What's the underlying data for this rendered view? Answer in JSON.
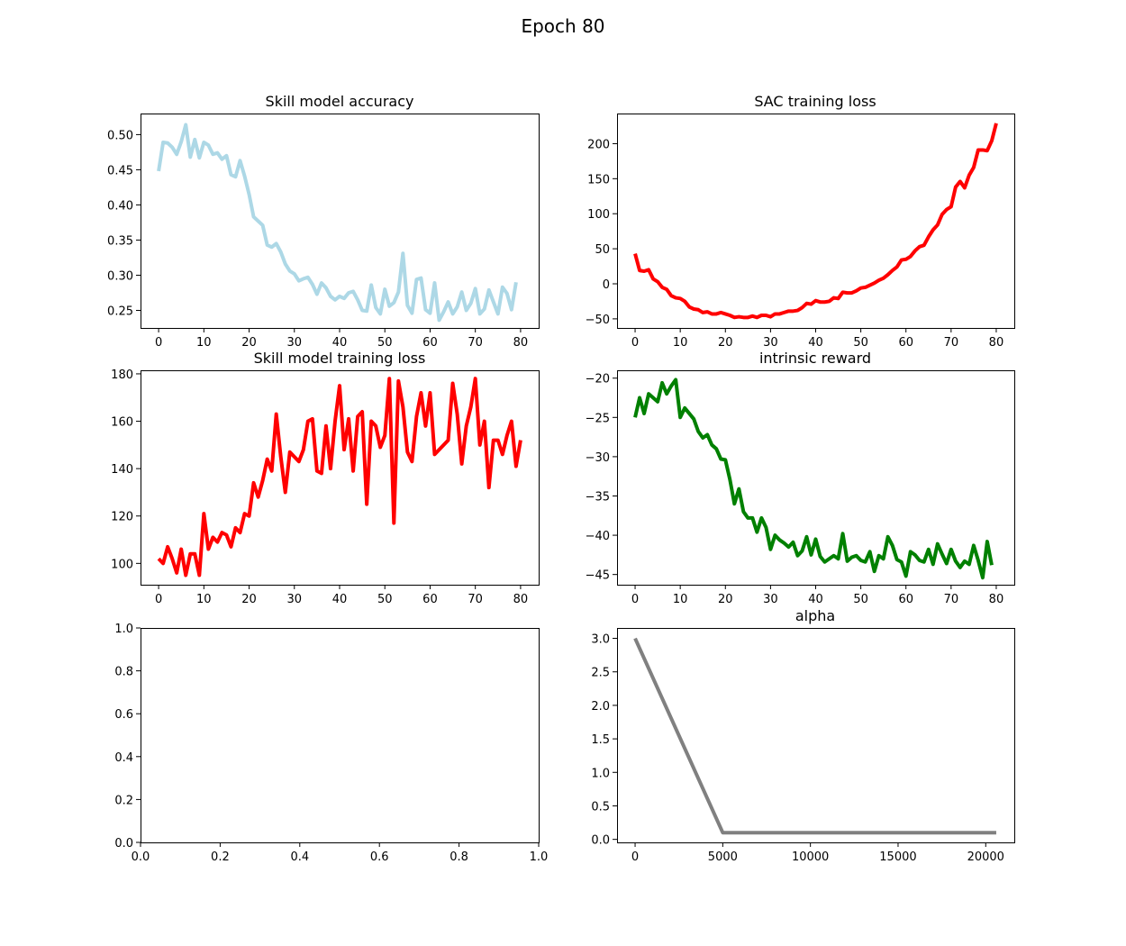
{
  "figure": {
    "suptitle": "Epoch 80"
  },
  "chart_data": [
    {
      "type": "line",
      "title": "Skill model accuracy",
      "xlabel": "",
      "ylabel": "",
      "xlim": [
        -4,
        84
      ],
      "ylim": [
        0.225,
        0.53
      ],
      "xticks": [
        0,
        10,
        20,
        30,
        40,
        50,
        60,
        70,
        80
      ],
      "yticks": [
        0.25,
        0.3,
        0.35,
        0.4,
        0.45,
        0.5
      ],
      "ytick_labels": [
        "0.25",
        "0.30",
        "0.35",
        "0.40",
        "0.45",
        "0.50"
      ],
      "series": [
        {
          "color": "#add8e6",
          "values": [
            0.448,
            0.489,
            0.488,
            0.482,
            0.472,
            0.49,
            0.514,
            0.468,
            0.493,
            0.467,
            0.489,
            0.485,
            0.472,
            0.474,
            0.465,
            0.47,
            0.443,
            0.44,
            0.463,
            0.441,
            0.415,
            0.383,
            0.377,
            0.371,
            0.343,
            0.34,
            0.345,
            0.333,
            0.316,
            0.306,
            0.302,
            0.292,
            0.295,
            0.297,
            0.287,
            0.273,
            0.289,
            0.282,
            0.27,
            0.265,
            0.27,
            0.267,
            0.275,
            0.277,
            0.265,
            0.25,
            0.249,
            0.286,
            0.254,
            0.245,
            0.28,
            0.256,
            0.261,
            0.276,
            0.331,
            0.257,
            0.246,
            0.294,
            0.296,
            0.251,
            0.246,
            0.289,
            0.236,
            0.248,
            0.262,
            0.245,
            0.255,
            0.276,
            0.25,
            0.26,
            0.281,
            0.245,
            0.252,
            0.279,
            0.262,
            0.245,
            0.283,
            0.274,
            0.251,
            0.29
          ]
        }
      ]
    },
    {
      "type": "line",
      "title": "SAC training loss",
      "xlabel": "",
      "ylabel": "",
      "xlim": [
        -4,
        84
      ],
      "ylim": [
        -63,
        243
      ],
      "xticks": [
        0,
        10,
        20,
        30,
        40,
        50,
        60,
        70,
        80
      ],
      "yticks": [
        -50,
        0,
        50,
        100,
        150,
        200
      ],
      "ytick_labels": [
        "−50",
        "0",
        "50",
        "100",
        "150",
        "200"
      ],
      "series": [
        {
          "color": "#ff0000",
          "values": [
            43,
            19,
            18,
            20,
            7,
            3,
            -5,
            -8,
            -17,
            -20,
            -21,
            -25,
            -33,
            -36,
            -37,
            -41,
            -40,
            -43,
            -43,
            -41,
            -43,
            -45,
            -48,
            -47,
            -48,
            -48,
            -46,
            -48,
            -45,
            -45,
            -47,
            -43,
            -43,
            -41,
            -39,
            -39,
            -38,
            -34,
            -28,
            -29,
            -24,
            -26,
            -26,
            -25,
            -20,
            -21,
            -12,
            -13,
            -13,
            -10,
            -6,
            -5,
            -2,
            1,
            5,
            8,
            13,
            19,
            24,
            34,
            35,
            39,
            47,
            53,
            55,
            67,
            77,
            84,
            99,
            106,
            110,
            138,
            146,
            137,
            155,
            166,
            191,
            191,
            190,
            204,
            229
          ]
        }
      ]
    },
    {
      "type": "line",
      "title": "Skill model training loss",
      "xlabel": "",
      "ylabel": "",
      "xlim": [
        -4,
        84
      ],
      "ylim": [
        91,
        181.5
      ],
      "xticks": [
        0,
        10,
        20,
        30,
        40,
        50,
        60,
        70,
        80
      ],
      "yticks": [
        100,
        120,
        140,
        160,
        180
      ],
      "ytick_labels": [
        "100",
        "120",
        "140",
        "160",
        "180"
      ],
      "series": [
        {
          "color": "#ff0000",
          "values": [
            102,
            100,
            107,
            102,
            96,
            106,
            95,
            104,
            104,
            95,
            121,
            106,
            111,
            109,
            113,
            112,
            107,
            115,
            113,
            121,
            120,
            134,
            128,
            135,
            144,
            139,
            163,
            145,
            130,
            147,
            145,
            143,
            148,
            160,
            161,
            139,
            138,
            158,
            140,
            160,
            175,
            148,
            161,
            139,
            162,
            164,
            125,
            160,
            158,
            149,
            154,
            178,
            117,
            177,
            166,
            147,
            143,
            162,
            172,
            158,
            172,
            146,
            148,
            150,
            152,
            176,
            163,
            142,
            158,
            166,
            178,
            150,
            160,
            132,
            152,
            152,
            146,
            154,
            160,
            141,
            152
          ]
        }
      ]
    },
    {
      "type": "line",
      "title": "intrinsic reward",
      "xlabel": "",
      "ylabel": "",
      "xlim": [
        -4,
        84
      ],
      "ylim": [
        -46.3,
        -19.0
      ],
      "xticks": [
        0,
        10,
        20,
        30,
        40,
        50,
        60,
        70,
        80
      ],
      "yticks": [
        -45,
        -40,
        -35,
        -30,
        -25,
        -20
      ],
      "ytick_labels": [
        "−45",
        "−40",
        "−35",
        "−30",
        "−25",
        "−20"
      ],
      "series": [
        {
          "color": "#008000",
          "values": [
            -25.0,
            -22.5,
            -24.5,
            -22.0,
            -22.5,
            -23.0,
            -20.6,
            -22.0,
            -21.0,
            -20.2,
            -25.0,
            -23.8,
            -24.5,
            -25.2,
            -26.8,
            -27.6,
            -27.2,
            -28.5,
            -29.0,
            -30.3,
            -30.4,
            -32.9,
            -36.0,
            -34.1,
            -37.0,
            -37.8,
            -37.8,
            -39.6,
            -37.8,
            -39.0,
            -41.8,
            -40.0,
            -40.6,
            -41.0,
            -41.5,
            -40.9,
            -42.6,
            -42.0,
            -40.2,
            -42.5,
            -40.5,
            -42.7,
            -43.4,
            -43.0,
            -42.6,
            -43.0,
            -39.8,
            -43.3,
            -42.8,
            -42.6,
            -43.2,
            -43.4,
            -42.1,
            -44.6,
            -42.6,
            -43.0,
            -40.2,
            -41.3,
            -43.1,
            -43.4,
            -45.2,
            -42.1,
            -42.5,
            -43.2,
            -43.4,
            -41.8,
            -43.7,
            -41.1,
            -42.4,
            -43.6,
            -41.8,
            -43.3,
            -44.1,
            -43.3,
            -43.7,
            -41.3,
            -43.2,
            -45.4,
            -40.8,
            -43.8
          ]
        }
      ]
    },
    {
      "type": "line",
      "title": "",
      "xlabel": "",
      "ylabel": "",
      "xlim": [
        0.0,
        1.0
      ],
      "ylim": [
        0.0,
        1.0
      ],
      "xticks": [
        0.0,
        0.2,
        0.4,
        0.6,
        0.8,
        1.0
      ],
      "xtick_labels": [
        "0.0",
        "0.2",
        "0.4",
        "0.6",
        "0.8",
        "1.0"
      ],
      "yticks": [
        0.0,
        0.2,
        0.4,
        0.6,
        0.8,
        1.0
      ],
      "ytick_labels": [
        "0.0",
        "0.2",
        "0.4",
        "0.6",
        "0.8",
        "1.0"
      ],
      "series": []
    },
    {
      "type": "line",
      "title": "alpha",
      "xlabel": "",
      "ylabel": "",
      "xlim": [
        -1030,
        21630
      ],
      "ylim": [
        -0.045,
        3.155
      ],
      "xticks": [
        0,
        5000,
        10000,
        15000,
        20000
      ],
      "yticks": [
        0.0,
        0.5,
        1.0,
        1.5,
        2.0,
        2.5,
        3.0
      ],
      "ytick_labels": [
        "0.0",
        "0.5",
        "1.0",
        "1.5",
        "2.0",
        "2.5",
        "3.0"
      ],
      "series": [
        {
          "color": "#808080",
          "x": [
            0,
            5000,
            20600
          ],
          "values": [
            3.0,
            0.1,
            0.1
          ]
        }
      ]
    }
  ]
}
